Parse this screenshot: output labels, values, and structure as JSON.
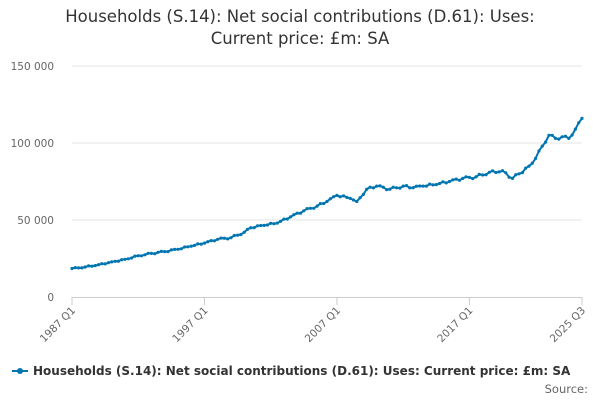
{
  "title_line1": "Households (S.14): Net social contributions (D.61): Uses:",
  "title_line2": "Current price: £m: SA",
  "source_label": "Source:",
  "colors": {
    "series": "#0075b0",
    "grid": "#e6e6e6",
    "axis": "#cccccc"
  },
  "chart_data": {
    "type": "line",
    "title": "Households (S.14): Net social contributions (D.61): Uses: Current price: £m: SA",
    "xlabel": "",
    "ylabel": "",
    "ylim": [
      0,
      150000
    ],
    "yticks": [
      0,
      50000,
      100000,
      150000
    ],
    "ytick_labels": [
      "0",
      "50 000",
      "100 000",
      "150 000"
    ],
    "xtick_labels": [
      "1987 Q1",
      "1997 Q1",
      "2007 Q1",
      "2017 Q1",
      "2025 Q3"
    ],
    "xtick_index": [
      0,
      40,
      80,
      120,
      154
    ],
    "grid": true,
    "legend_position": "bottom-left",
    "series": [
      {
        "name": "Households (S.14): Net social contributions (D.61): Uses: Current price: £m: SA",
        "start": "1987 Q1",
        "end": "2025 Q3",
        "frequency": "quarterly",
        "keypoints": [
          [
            0,
            18500
          ],
          [
            4,
            19500
          ],
          [
            8,
            21000
          ],
          [
            12,
            22800
          ],
          [
            16,
            24500
          ],
          [
            20,
            26800
          ],
          [
            24,
            28300
          ],
          [
            28,
            29500
          ],
          [
            32,
            31000
          ],
          [
            36,
            33000
          ],
          [
            40,
            35000
          ],
          [
            44,
            37500
          ],
          [
            48,
            38500
          ],
          [
            52,
            42000
          ],
          [
            54,
            45000
          ],
          [
            58,
            46500
          ],
          [
            62,
            48000
          ],
          [
            66,
            52000
          ],
          [
            70,
            56000
          ],
          [
            74,
            59000
          ],
          [
            77,
            62000
          ],
          [
            80,
            66000
          ],
          [
            84,
            64000
          ],
          [
            86,
            62000
          ],
          [
            89,
            70000
          ],
          [
            92,
            72000
          ],
          [
            96,
            70000
          ],
          [
            100,
            72000
          ],
          [
            103,
            71000
          ],
          [
            106,
            72000
          ],
          [
            110,
            73000
          ],
          [
            114,
            75000
          ],
          [
            118,
            77000
          ],
          [
            122,
            78000
          ],
          [
            126,
            81000
          ],
          [
            130,
            82000
          ],
          [
            133,
            77000
          ],
          [
            135,
            80000
          ],
          [
            138,
            85000
          ],
          [
            140,
            90000
          ],
          [
            142,
            98000
          ],
          [
            144,
            105000
          ],
          [
            146,
            103000
          ],
          [
            148,
            104000
          ],
          [
            150,
            103000
          ],
          [
            152,
            109000
          ],
          [
            154,
            116000
          ]
        ]
      }
    ]
  }
}
